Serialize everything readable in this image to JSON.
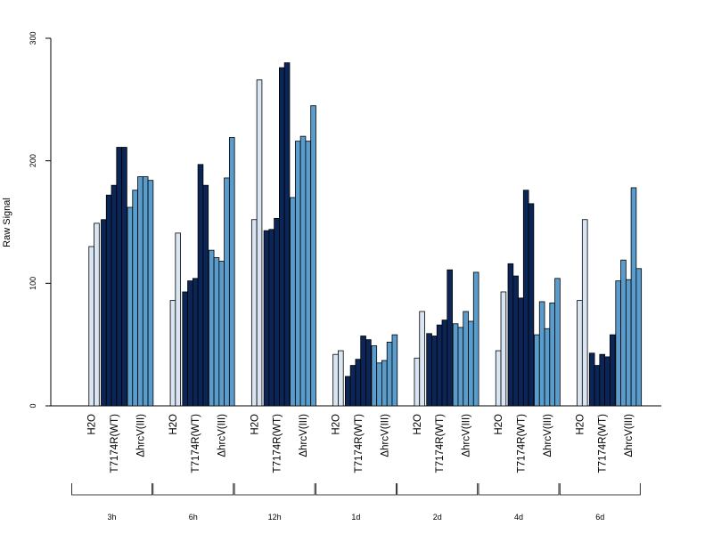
{
  "chart_data": {
    "type": "bar",
    "ylabel": "Raw Signal",
    "ylim": [
      0,
      300
    ],
    "yticks": [
      0,
      100,
      200,
      300
    ],
    "grid": false,
    "legend": "none",
    "time_points": [
      "3h",
      "6h",
      "12h",
      "1d",
      "2d",
      "4d",
      "6d"
    ],
    "treatments": [
      "H2O",
      "T7174R(WT)",
      "ΔhrcV(III)"
    ],
    "colors": {
      "H2O": "#d9e5f2",
      "T7174R(WT)": "#0c2557",
      "ΔhrcV(III)": "#5a9ccc"
    },
    "groups": [
      {
        "time": "3h",
        "H2O": [
          0,
          130,
          149
        ],
        "T7174R(WT)": [
          152,
          172,
          180,
          211,
          211
        ],
        "ΔhrcV(III)": [
          162,
          176,
          187,
          187,
          184
        ]
      },
      {
        "time": "6h",
        "H2O": [
          0,
          86,
          141
        ],
        "T7174R(WT)": [
          93,
          102,
          104,
          197,
          180
        ],
        "ΔhrcV(III)": [
          127,
          121,
          118,
          186,
          219
        ]
      },
      {
        "time": "12h",
        "H2O": [
          0,
          152,
          266
        ],
        "T7174R(WT)": [
          143,
          144,
          153,
          276,
          280
        ],
        "ΔhrcV(III)": [
          170,
          216,
          220,
          216,
          245
        ]
      },
      {
        "time": "1d",
        "H2O": [
          0,
          42,
          45
        ],
        "T7174R(WT)": [
          24,
          33,
          38,
          57,
          54
        ],
        "ΔhrcV(III)": [
          49,
          35,
          37,
          52,
          58
        ]
      },
      {
        "time": "2d",
        "H2O": [
          0,
          39,
          77
        ],
        "T7174R(WT)": [
          59,
          57,
          66,
          70,
          111
        ],
        "ΔhrcV(III)": [
          67,
          64,
          77,
          69,
          109
        ]
      },
      {
        "time": "4d",
        "H2O": [
          0,
          45,
          93
        ],
        "T7174R(WT)": [
          116,
          106,
          88,
          176,
          165
        ],
        "ΔhrcV(III)": [
          58,
          85,
          63,
          84,
          104
        ]
      },
      {
        "time": "6d",
        "H2O": [
          0,
          86,
          152
        ],
        "T7174R(WT)": [
          43,
          33,
          42,
          40,
          58
        ],
        "ΔhrcV(III)": [
          102,
          119,
          103,
          178,
          112
        ]
      }
    ]
  }
}
